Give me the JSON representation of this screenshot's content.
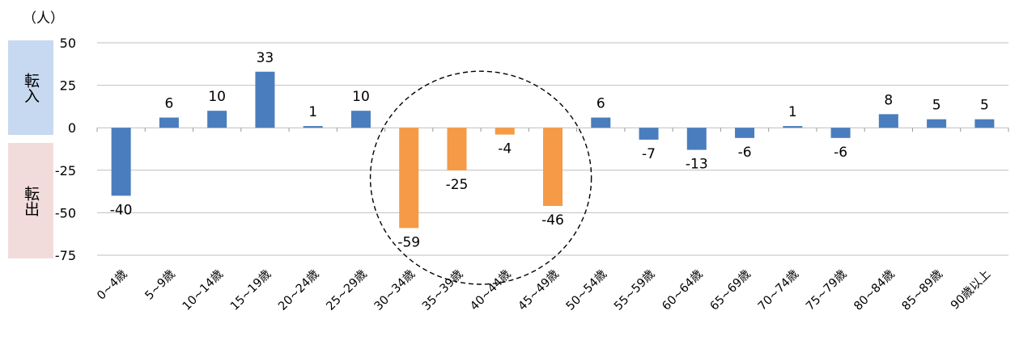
{
  "unit_label": "（人）",
  "side_labels": {
    "inflow": "転入",
    "outflow": "転出"
  },
  "colors": {
    "normal_bar": "#4a7dbd",
    "highlight_bar": "#f59a46",
    "inflow_box": "#c6d9f1",
    "outflow_box": "#f2dcdb",
    "grid": "#bfbfbf"
  },
  "chart_data": {
    "type": "bar",
    "categories": [
      "0~4歳",
      "5~9歳",
      "10~14歳",
      "15~19歳",
      "20~24歳",
      "25~29歳",
      "30~34歳",
      "35~39歳",
      "40~44歳",
      "45~49歳",
      "50~54歳",
      "55~59歳",
      "60~64歳",
      "65~69歳",
      "70~74歳",
      "75~79歳",
      "80~84歳",
      "85~89歳",
      "90歳以上"
    ],
    "values": [
      -40,
      6,
      10,
      33,
      1,
      10,
      -59,
      -25,
      -4,
      -46,
      6,
      -7,
      -13,
      -6,
      1,
      -6,
      8,
      5,
      5
    ],
    "highlighted_categories": [
      "30~34歳",
      "35~39歳",
      "40~44歳",
      "45~49歳"
    ],
    "yticks": [
      50,
      25,
      0,
      -25,
      -50,
      -75
    ],
    "ylim": [
      -75,
      50
    ],
    "grid": true,
    "title": "",
    "xlabel": "",
    "ylabel": "（人）"
  }
}
